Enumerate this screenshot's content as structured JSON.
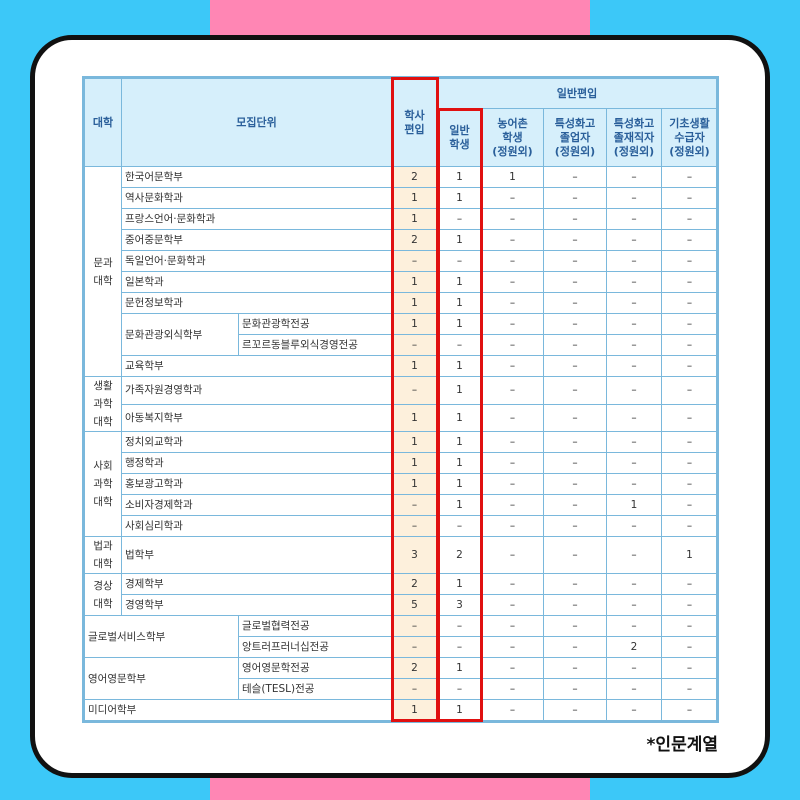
{
  "header": {
    "college": "대학",
    "unit": "모집단위",
    "bachelor": "학사\n편입",
    "general_group": "일반편입",
    "general_student": "일반\n학생",
    "rural": "농어촌\n학생\n(정원외)",
    "vocational_grad": "특성화고\n졸업자\n(정원외)",
    "vocational_employed": "특성화고\n졸재직자\n(정원외)",
    "basic_livelihood": "기초생활\n수급자\n(정원외)"
  },
  "colleges": [
    {
      "name": "문과\n대학",
      "units": [
        {
          "name": "한국어문학부",
          "values": [
            "2",
            "1",
            "1",
            "–",
            "–",
            "–"
          ]
        },
        {
          "name": "역사문화학과",
          "values": [
            "1",
            "1",
            "–",
            "–",
            "–",
            "–"
          ]
        },
        {
          "name": "프랑스언어·문화학과",
          "values": [
            "1",
            "–",
            "–",
            "–",
            "–",
            "–"
          ]
        },
        {
          "name": "중어중문학부",
          "values": [
            "2",
            "1",
            "–",
            "–",
            "–",
            "–"
          ]
        },
        {
          "name": "독일언어·문화학과",
          "values": [
            "–",
            "–",
            "–",
            "–",
            "–",
            "–"
          ]
        },
        {
          "name": "일본학과",
          "values": [
            "1",
            "1",
            "–",
            "–",
            "–",
            "–"
          ]
        },
        {
          "name": "문헌정보학과",
          "values": [
            "1",
            "1",
            "–",
            "–",
            "–",
            "–"
          ]
        },
        {
          "name": "문화관광외식학부",
          "majors": [
            {
              "name": "문화관광학전공",
              "values": [
                "1",
                "1",
                "–",
                "–",
                "–",
                "–"
              ]
            },
            {
              "name": "르꼬르동블루외식경영전공",
              "values": [
                "–",
                "–",
                "–",
                "–",
                "–",
                "–"
              ]
            }
          ]
        },
        {
          "name": "교육학부",
          "values": [
            "1",
            "1",
            "–",
            "–",
            "–",
            "–"
          ]
        }
      ]
    },
    {
      "name": "생활\n과학\n대학",
      "units": [
        {
          "name": "가족자원경영학과",
          "values": [
            "–",
            "1",
            "–",
            "–",
            "–",
            "–"
          ]
        },
        {
          "name": "아동복지학부",
          "values": [
            "1",
            "1",
            "–",
            "–",
            "–",
            "–"
          ]
        }
      ]
    },
    {
      "name": "사회\n과학\n대학",
      "units": [
        {
          "name": "정치외교학과",
          "values": [
            "1",
            "1",
            "–",
            "–",
            "–",
            "–"
          ]
        },
        {
          "name": "행정학과",
          "values": [
            "1",
            "1",
            "–",
            "–",
            "–",
            "–"
          ]
        },
        {
          "name": "홍보광고학과",
          "values": [
            "1",
            "1",
            "–",
            "–",
            "–",
            "–"
          ]
        },
        {
          "name": "소비자경제학과",
          "values": [
            "–",
            "1",
            "–",
            "–",
            "1",
            "–"
          ]
        },
        {
          "name": "사회심리학과",
          "values": [
            "–",
            "–",
            "–",
            "–",
            "–",
            "–"
          ]
        }
      ]
    },
    {
      "name": "법과\n대학",
      "units": [
        {
          "name": "법학부",
          "values": [
            "3",
            "2",
            "–",
            "–",
            "–",
            "1"
          ]
        }
      ]
    },
    {
      "name": "경상\n대학",
      "units": [
        {
          "name": "경제학부",
          "values": [
            "2",
            "1",
            "–",
            "–",
            "–",
            "–"
          ]
        },
        {
          "name": "경영학부",
          "values": [
            "5",
            "3",
            "–",
            "–",
            "–",
            "–"
          ]
        }
      ]
    },
    {
      "name": "",
      "units": [
        {
          "name": "글로벌서비스학부",
          "majors": [
            {
              "name": "글로벌협력전공",
              "values": [
                "–",
                "–",
                "–",
                "–",
                "–",
                "–"
              ]
            },
            {
              "name": "앙트러프러너십전공",
              "values": [
                "–",
                "–",
                "–",
                "–",
                "2",
                "–"
              ]
            }
          ]
        }
      ]
    },
    {
      "name": "",
      "units": [
        {
          "name": "영어영문학부",
          "majors": [
            {
              "name": "영어영문학전공",
              "values": [
                "2",
                "1",
                "–",
                "–",
                "–",
                "–"
              ]
            },
            {
              "name": "테슬(TESL)전공",
              "values": [
                "–",
                "–",
                "–",
                "–",
                "–",
                "–"
              ]
            }
          ]
        }
      ]
    },
    {
      "name": "",
      "units": [
        {
          "name": "미디어학부",
          "values": [
            "1",
            "1",
            "–",
            "–",
            "–",
            "–"
          ]
        }
      ]
    }
  ],
  "footnote": "*인문계열",
  "colors": {
    "highlight_box": "#e01010",
    "header_bg": "#d6effb",
    "border": "#7ab8dc",
    "bachelor_bg": "#fdf0dc",
    "frame_pink": "#ff86b4",
    "frame_cyan": "#3cc8f8"
  }
}
